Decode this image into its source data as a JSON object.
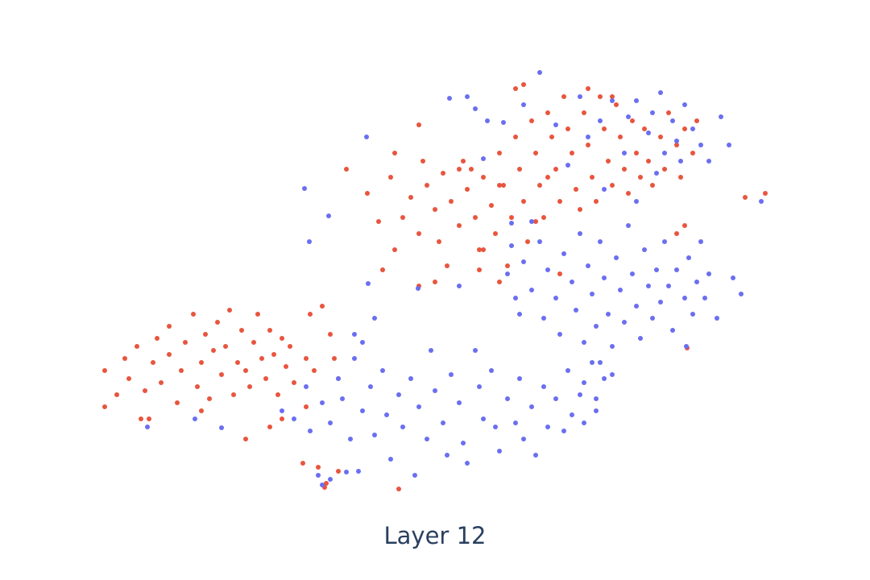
{
  "chart_data": {
    "type": "scatter",
    "title": "Layer 12",
    "xlim": [
      0,
      108
    ],
    "ylim": [
      0,
      72
    ],
    "marker_radius": 3,
    "series": [
      {
        "color": "#e8553e",
        "x": [
          43,
          45.6,
          47,
          48.5,
          49,
          50,
          51,
          52,
          52.5,
          53,
          54,
          54.5,
          55,
          55.5,
          56,
          57,
          57.5,
          58,
          59,
          59.5,
          60,
          61,
          61.5,
          62,
          62.5,
          63,
          63.5,
          64,
          64.5,
          65,
          65.5,
          66,
          66.5,
          67,
          67.5,
          68,
          68.5,
          69,
          69.5,
          70,
          70.5,
          71,
          71.5,
          72,
          72.5,
          73,
          73.5,
          74,
          74.5,
          75,
          75.5,
          76,
          76.5,
          77,
          77.5,
          78,
          78.5,
          79,
          79.5,
          80,
          80.5,
          81,
          82,
          82.5,
          83,
          84,
          84.5,
          85,
          86,
          86.5,
          64,
          65,
          52,
          49,
          57,
          60,
          54,
          52,
          47.5,
          58.5,
          68,
          62,
          73,
          76,
          85,
          84,
          66.5,
          59.5,
          62,
          13,
          13,
          14.5,
          15.5,
          16,
          17,
          17.5,
          18,
          19,
          19.5,
          20,
          21,
          21,
          22,
          22.5,
          23,
          24,
          24.5,
          25,
          25.5,
          26,
          26.5,
          27,
          27.5,
          28,
          28.5,
          29,
          29.5,
          30,
          30.5,
          31,
          31.5,
          32,
          32.5,
          33,
          33.5,
          34,
          34.5,
          35,
          35.5,
          36,
          36.5,
          38,
          38.5,
          39,
          40,
          41,
          41.5,
          42,
          30.5,
          33.5,
          35,
          38,
          18.5,
          25,
          37.6,
          39.5,
          40.5,
          40.3,
          42,
          49.5,
          92.5,
          95,
          85.3,
          69.5
        ],
        "values": [
          51,
          48,
          44.5,
          50,
          41,
          45,
          47.5,
          43,
          52,
          49,
          46,
          42,
          50.5,
          39,
          47,
          44,
          52,
          48.5,
          45,
          41,
          50,
          46.5,
          43,
          53,
          49,
          39,
          45,
          55,
          51,
          47,
          42,
          57,
          53,
          49,
          45,
          58,
          55,
          51,
          47,
          60,
          56,
          53,
          48.5,
          46,
          58,
          54,
          50,
          47,
          60,
          56,
          52,
          49,
          59,
          55,
          51,
          48,
          57,
          53,
          50,
          56,
          52,
          49,
          55,
          51,
          58,
          54,
          50,
          56,
          53,
          57,
          61,
          61.5,
          56.5,
          53,
          51,
          41,
          37,
          36.5,
          38.5,
          51,
          50,
          49,
          61,
          60,
          44,
          43,
          44.5,
          38.5,
          37,
          26,
          21.5,
          23,
          27.5,
          25,
          29,
          20,
          23.5,
          27,
          30,
          24.5,
          28,
          31.5,
          22,
          26,
          29.5,
          33,
          24,
          27,
          30.5,
          22.5,
          28.5,
          32,
          25.5,
          29,
          33.5,
          23,
          27,
          31,
          26,
          24,
          29.5,
          33,
          27.5,
          25,
          31,
          28,
          23,
          30,
          26.5,
          29,
          24.5,
          27.5,
          33,
          26,
          34,
          30.5,
          27.5,
          25,
          17.5,
          19,
          20,
          21.5,
          20,
          21,
          14.5,
          14,
          12,
          11.5,
          13.5,
          11.3,
          47.5,
          48,
          28.8,
          38
        ]
      },
      {
        "color": "#6a6ff0",
        "x": [
          55.8,
          58,
          59,
          60.5,
          62.5,
          67,
          69,
          72,
          74.5,
          76,
          78,
          79,
          80.5,
          81,
          82,
          83.5,
          84,
          85,
          86,
          87,
          88,
          89.5,
          90.5,
          84.5,
          82.5,
          77.5,
          73,
          65,
          70.5,
          75,
          79,
          81.5,
          63,
          64,
          64.5,
          65,
          66,
          67,
          67.5,
          68,
          69,
          69.5,
          70,
          71,
          71.5,
          72,
          72.5,
          73,
          73.5,
          74,
          74.5,
          75,
          75.5,
          76,
          76.5,
          77,
          77.5,
          78,
          78.5,
          79,
          79.5,
          80,
          80.5,
          81,
          81.5,
          82,
          82.5,
          83,
          83.5,
          84,
          85,
          85.5,
          86,
          86.5,
          87,
          87.5,
          88,
          89,
          91,
          92,
          85.2,
          76,
          74.5,
          72.5,
          63.5,
          66,
          35,
          36.5,
          38,
          38.5,
          40,
          41,
          42,
          42.5,
          43.5,
          44,
          45,
          46,
          46.5,
          47.5,
          48,
          48.5,
          49.5,
          50,
          51,
          51.5,
          52,
          53,
          53.5,
          54,
          55,
          55.5,
          56,
          57,
          57.5,
          58,
          59,
          59.5,
          60,
          61,
          61.5,
          62,
          63,
          64,
          64.5,
          65,
          66,
          66.5,
          67.5,
          68,
          69,
          70,
          70.5,
          71,
          72,
          72.5,
          73.5,
          74,
          75,
          74,
          44.5,
          43,
          41,
          40,
          39.5,
          45,
          46.5,
          44,
          37.8,
          38.4,
          45.5,
          40.8,
          94.5,
          18.3,
          24.2,
          27.5,
          51.9,
          45.7,
          57,
          60,
          63.5
        ],
        "values": [
          59.8,
          60,
          58.5,
          57,
          56.8,
          63,
          56.5,
          60,
          57,
          59.5,
          57.5,
          59.5,
          55.5,
          58,
          60.5,
          57,
          54.5,
          59,
          56,
          54,
          52,
          57.5,
          54,
          52,
          53,
          53,
          55,
          59,
          51.5,
          48.5,
          47,
          50.5,
          38,
          35,
          33,
          39.5,
          36,
          42,
          32.5,
          38.5,
          35,
          30.5,
          40.5,
          37,
          33.5,
          43,
          29.5,
          39,
          35.5,
          31.5,
          42,
          37.5,
          33,
          29,
          40,
          36,
          32,
          44,
          38,
          34,
          30,
          41,
          36.5,
          32.5,
          38.5,
          34.5,
          42,
          36.5,
          31,
          38.5,
          35,
          40,
          33,
          37,
          42,
          35,
          38,
          32.5,
          37.5,
          35.5,
          29,
          25.5,
          27,
          24.5,
          41.5,
          44.5,
          21,
          20,
          24,
          18.5,
          22,
          19.5,
          25,
          22.5,
          17.5,
          27.5,
          21,
          24,
          18,
          26,
          20.5,
          15,
          23,
          19,
          25,
          13,
          21.5,
          17.5,
          28.5,
          23.5,
          19.5,
          15.5,
          25.5,
          22,
          17,
          14.5,
          28.5,
          24,
          20,
          26,
          19,
          16,
          22.5,
          19.5,
          25,
          17.5,
          21.5,
          15.5,
          24,
          19,
          22.5,
          18.5,
          26,
          20.5,
          23,
          19.5,
          27,
          22.5,
          25,
          21,
          13.5,
          13.4,
          12.5,
          11.8,
          13,
          29.5,
          32.5,
          30.5,
          48.6,
          42,
          55,
          45.2,
          47,
          19,
          20,
          18.9,
          36.2,
          36.8,
          36.5,
          52.3,
          44.3
        ]
      }
    ]
  }
}
